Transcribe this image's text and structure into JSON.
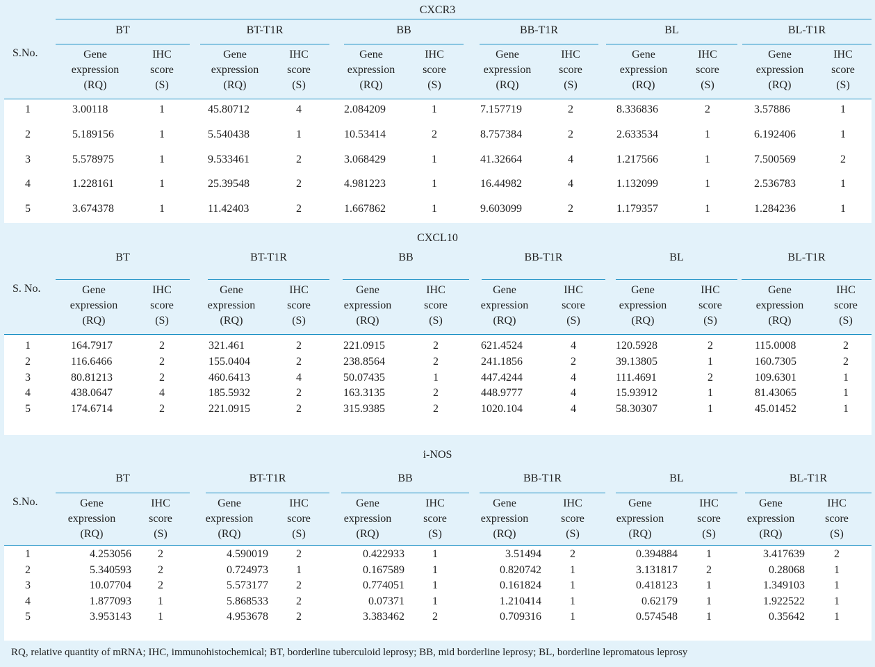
{
  "tables": [
    {
      "title": "CXCR3",
      "groups": [
        "BT",
        "BT-T1R",
        "BB",
        "BB-T1R",
        "BL",
        "BL-T1R"
      ],
      "sno_label": "S.No.",
      "sub_headers": {
        "gene": [
          "Gene",
          "expression",
          "(RQ)"
        ],
        "ihc": [
          "IHC",
          "score",
          "(S)"
        ]
      },
      "rows": [
        [
          "1",
          "3.00118",
          "1",
          "45.80712",
          "4",
          "2.084209",
          "1",
          "7.157719",
          "2",
          "8.336836",
          "2",
          "3.57886",
          "1"
        ],
        [
          "2",
          "5.189156",
          "1",
          "5.540438",
          "1",
          "10.53414",
          "2",
          "8.757384",
          "2",
          "2.633534",
          "1",
          "6.192406",
          "1"
        ],
        [
          "3",
          "5.578975",
          "1",
          "9.533461",
          "2",
          "3.068429",
          "1",
          "41.32664",
          "4",
          "1.217566",
          "1",
          "7.500569",
          "2"
        ],
        [
          "4",
          "1.228161",
          "1",
          "25.39548",
          "2",
          "4.981223",
          "1",
          "16.44982",
          "4",
          "1.132099",
          "1",
          "2.536783",
          "1"
        ],
        [
          "5",
          "3.674378",
          "1",
          "11.42403",
          "2",
          "1.667862",
          "1",
          "9.603099",
          "2",
          "1.179357",
          "1",
          "1.284236",
          "1"
        ]
      ]
    },
    {
      "title": "CXCL10",
      "groups": [
        "BT",
        "BT-T1R",
        "BB",
        "BB-T1R",
        "BL",
        "BL-T1R"
      ],
      "sno_label": "S. No.",
      "sub_headers": {
        "gene": [
          "Gene",
          "expression",
          "(RQ)"
        ],
        "ihc": [
          "IHC",
          "score",
          "(S)"
        ]
      },
      "rows": [
        [
          "1",
          "164.7917",
          "2",
          "321.461",
          "2",
          "221.0915",
          "2",
          "621.4524",
          "4",
          "120.5928",
          "2",
          "115.0008",
          "2"
        ],
        [
          "2",
          "116.6466",
          "2",
          "155.0404",
          "2",
          "238.8564",
          "2",
          "241.1856",
          "2",
          "39.13805",
          "1",
          "160.7305",
          "2"
        ],
        [
          "3",
          "80.81213",
          "2",
          "460.6413",
          "4",
          "50.07435",
          "1",
          "447.4244",
          "4",
          "111.4691",
          "2",
          "109.6301",
          "1"
        ],
        [
          "4",
          "438.0647",
          "4",
          "185.5932",
          "2",
          "163.3135",
          "2",
          "448.9777",
          "4",
          "15.93912",
          "1",
          "81.43065",
          "1"
        ],
        [
          "5",
          "174.6714",
          "2",
          "221.0915",
          "2",
          "315.9385",
          "2",
          "1020.104",
          "4",
          "58.30307",
          "1",
          "45.01452",
          "1"
        ]
      ]
    },
    {
      "title": "i-NOS",
      "groups": [
        "BT",
        "BT-T1R",
        "BB",
        "BB-T1R",
        "BL",
        "BL-T1R"
      ],
      "sno_label": "S.No.",
      "sub_headers": {
        "gene": [
          "Gene",
          "expression",
          "(RQ)"
        ],
        "ihc": [
          "IHC",
          "score",
          "(S)"
        ]
      },
      "rows": [
        [
          "1",
          "4.253056",
          "2",
          "4.590019",
          "2",
          "0.422933",
          "1",
          "3.51494",
          "2",
          "0.394884",
          "1",
          "3.417639",
          "2"
        ],
        [
          "2",
          "5.340593",
          "2",
          "0.724973",
          "1",
          "0.167589",
          "1",
          "0.820742",
          "1",
          "3.131817",
          "2",
          "0.28068",
          "1"
        ],
        [
          "3",
          "10.07704",
          "2",
          "5.573177",
          "2",
          "0.774051",
          "1",
          "0.161824",
          "1",
          "0.418123",
          "1",
          "1.349103",
          "1"
        ],
        [
          "4",
          "1.877093",
          "1",
          "5.868533",
          "2",
          "0.07371",
          "1",
          "1.210414",
          "1",
          "0.62179",
          "1",
          "1.922522",
          "1"
        ],
        [
          "5",
          "3.953143",
          "1",
          "4.953678",
          "2",
          "3.383462",
          "2",
          "0.709316",
          "1",
          "0.574548",
          "1",
          "0.35642",
          "1"
        ]
      ]
    }
  ],
  "footnote": "RQ, relative quantity of mRNA; IHC, immunohistochemical; BT, borderline tuberculoid leprosy; BB, mid borderline leprosy; BL, borderline lepromatous leprosy"
}
